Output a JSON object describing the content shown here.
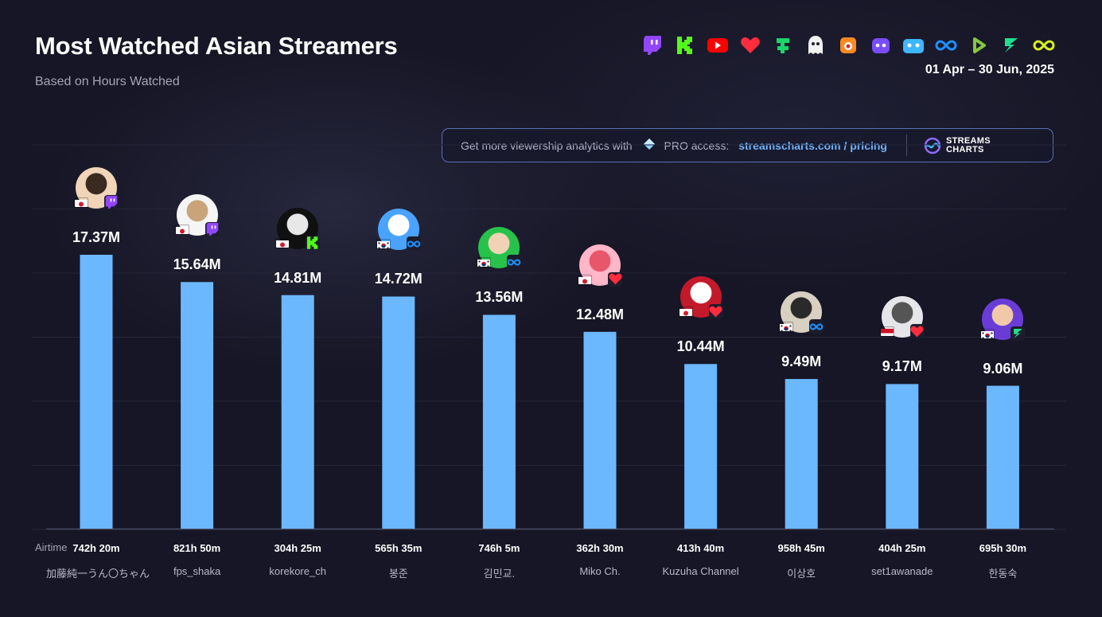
{
  "header": {
    "title": "Most Watched Asian Streamers",
    "subtitle": "Based on Hours Watched",
    "date_range": "01 Apr – 30 Jun, 2025",
    "platform_icons": [
      "twitch-icon",
      "kick-icon",
      "youtube-icon",
      "heart-icon",
      "trovo-icon",
      "ghost-icon",
      "owl-icon",
      "bot-icon",
      "bilibili-icon",
      "infinity-icon",
      "rumble-icon",
      "zeta-icon",
      "infinity-yellow-icon"
    ]
  },
  "promo": {
    "text": "Get more viewership analytics with",
    "pro": "PRO access:",
    "link": "streamscharts.com / pricing",
    "logo_line1": "STREAMS",
    "logo_line2": "CHARTS"
  },
  "airtime_label": "Airtime",
  "colors": {
    "bar": "#6cb8ff",
    "background": "#161626",
    "grid": "#24243a"
  },
  "chart_data": {
    "type": "bar",
    "title": "Most Watched Asian Streamers",
    "subtitle": "Based on Hours Watched",
    "categories": [
      "加藤純一うん〇ちゃん",
      "fps_shaka",
      "korekore_ch",
      "봉준",
      "김민교.",
      "Miko Ch.",
      "Kuzuha Channel",
      "이상호",
      "set1awanade",
      "한동숙"
    ],
    "values": [
      17.37,
      15.64,
      14.81,
      14.72,
      13.56,
      12.48,
      10.44,
      9.49,
      9.17,
      9.06
    ],
    "value_labels": [
      "17.37M",
      "15.64M",
      "14.81M",
      "14.72M",
      "13.56M",
      "12.48M",
      "10.44M",
      "9.49M",
      "9.17M",
      "9.06M"
    ],
    "airtime": [
      "742h 20m",
      "821h 50m",
      "304h 25m",
      "565h 35m",
      "746h 5m",
      "362h 30m",
      "413h 40m",
      "958h 45m",
      "404h 25m",
      "695h 30m"
    ],
    "countries": [
      "jp",
      "jp",
      "jp",
      "kr",
      "kr",
      "jp",
      "jp",
      "kr",
      "id",
      "kr"
    ],
    "platforms": [
      "twitch",
      "twitch",
      "kick",
      "chzzk",
      "chzzk",
      "heart",
      "heart",
      "chzzk",
      "heart",
      "zeta"
    ],
    "ylim": [
      0,
      17.37
    ],
    "grid": true
  }
}
